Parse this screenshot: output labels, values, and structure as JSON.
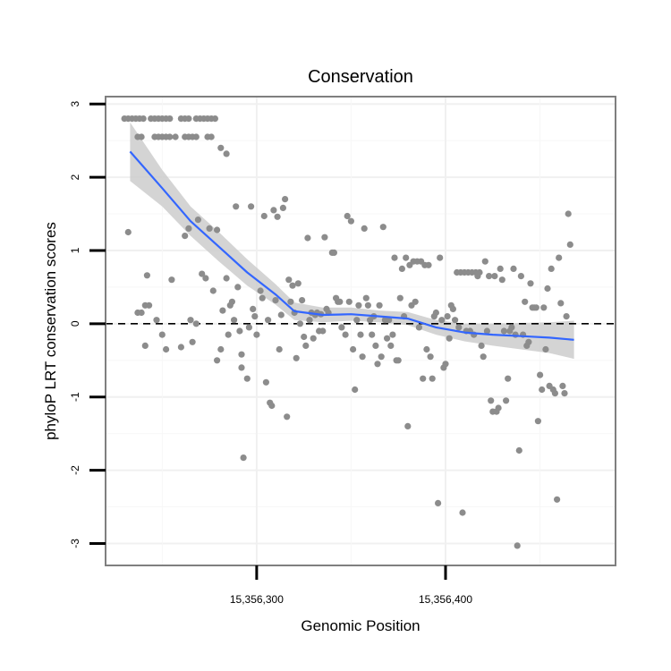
{
  "chart_data": {
    "type": "scatter",
    "title": "Conservation",
    "xlabel": "Genomic Position",
    "ylabel": "phyloP LRT conservation scores",
    "xlim": [
      15356220,
      15356490
    ],
    "ylim": [
      -3.3,
      3.1
    ],
    "x_ticks": [
      15356300,
      15356400
    ],
    "x_tick_labels": [
      "15,356,300",
      "15,356,400"
    ],
    "y_ticks": [
      -3,
      -2,
      -1,
      0,
      1,
      2,
      3
    ],
    "y_tick_labels": [
      "-3",
      "-2",
      "-1",
      "0",
      "1",
      "2",
      "3"
    ],
    "grid": true,
    "reference_line": {
      "y": 0,
      "style": "dashed"
    },
    "colors": {
      "points": "#8c8c8c",
      "smooth": "#3366ff",
      "band": "#cccccc",
      "frame": "#7f7f7f"
    },
    "points": [
      [
        15356230,
        2.8
      ],
      [
        15356232,
        2.8
      ],
      [
        15356234,
        2.8
      ],
      [
        15356236,
        2.8
      ],
      [
        15356238,
        2.8
      ],
      [
        15356240,
        2.8
      ],
      [
        15356244,
        2.8
      ],
      [
        15356246,
        2.8
      ],
      [
        15356248,
        2.8
      ],
      [
        15356250,
        2.8
      ],
      [
        15356252,
        2.8
      ],
      [
        15356254,
        2.8
      ],
      [
        15356260,
        2.8
      ],
      [
        15356262,
        2.8
      ],
      [
        15356264,
        2.8
      ],
      [
        15356268,
        2.8
      ],
      [
        15356270,
        2.8
      ],
      [
        15356272,
        2.8
      ],
      [
        15356274,
        2.8
      ],
      [
        15356276,
        2.8
      ],
      [
        15356278,
        2.8
      ],
      [
        15356237,
        2.55
      ],
      [
        15356239,
        2.55
      ],
      [
        15356246,
        2.55
      ],
      [
        15356248,
        2.55
      ],
      [
        15356250,
        2.55
      ],
      [
        15356252,
        2.55
      ],
      [
        15356254,
        2.55
      ],
      [
        15356257,
        2.55
      ],
      [
        15356262,
        2.55
      ],
      [
        15356264,
        2.55
      ],
      [
        15356266,
        2.55
      ],
      [
        15356268,
        2.55
      ],
      [
        15356274,
        2.55
      ],
      [
        15356276,
        2.55
      ],
      [
        15356281,
        2.4
      ],
      [
        15356284,
        2.32
      ],
      [
        15356232,
        1.25
      ],
      [
        15356242,
        0.66
      ],
      [
        15356237,
        0.15
      ],
      [
        15356239,
        0.15
      ],
      [
        15356241,
        0.25
      ],
      [
        15356243,
        0.25
      ],
      [
        15356241,
        -0.3
      ],
      [
        15356247,
        0.05
      ],
      [
        15356250,
        -0.15
      ],
      [
        15356252,
        -0.35
      ],
      [
        15356255,
        0.6
      ],
      [
        15356260,
        -0.32
      ],
      [
        15356262,
        1.2
      ],
      [
        15356264,
        1.3
      ],
      [
        15356265,
        0.05
      ],
      [
        15356266,
        -0.25
      ],
      [
        15356268,
        0.0
      ],
      [
        15356269,
        1.42
      ],
      [
        15356271,
        0.68
      ],
      [
        15356273,
        0.62
      ],
      [
        15356275,
        1.3
      ],
      [
        15356277,
        0.45
      ],
      [
        15356279,
        1.28
      ],
      [
        15356279,
        -0.5
      ],
      [
        15356281,
        -0.35
      ],
      [
        15356282,
        0.18
      ],
      [
        15356284,
        0.62
      ],
      [
        15356285,
        -0.15
      ],
      [
        15356286,
        0.25
      ],
      [
        15356287,
        0.3
      ],
      [
        15356288,
        0.05
      ],
      [
        15356289,
        1.6
      ],
      [
        15356290,
        0.5
      ],
      [
        15356291,
        -0.1
      ],
      [
        15356292,
        -0.42
      ],
      [
        15356292,
        -0.6
      ],
      [
        15356293,
        -1.83
      ],
      [
        15356295,
        -0.75
      ],
      [
        15356296,
        -0.05
      ],
      [
        15356297,
        1.6
      ],
      [
        15356298,
        0.2
      ],
      [
        15356299,
        0.1
      ],
      [
        15356300,
        -0.15
      ],
      [
        15356302,
        0.45
      ],
      [
        15356303,
        0.35
      ],
      [
        15356304,
        1.47
      ],
      [
        15356305,
        -0.8
      ],
      [
        15356306,
        0.05
      ],
      [
        15356307,
        -1.08
      ],
      [
        15356308,
        -1.12
      ],
      [
        15356309,
        1.55
      ],
      [
        15356310,
        0.32
      ],
      [
        15356311,
        1.46
      ],
      [
        15356312,
        -0.35
      ],
      [
        15356313,
        0.12
      ],
      [
        15356314,
        1.58
      ],
      [
        15356315,
        1.7
      ],
      [
        15356316,
        -1.27
      ],
      [
        15356317,
        0.6
      ],
      [
        15356318,
        0.3
      ],
      [
        15356319,
        0.52
      ],
      [
        15356320,
        0.15
      ],
      [
        15356321,
        -0.47
      ],
      [
        15356322,
        0.55
      ],
      [
        15356323,
        0.0
      ],
      [
        15356324,
        0.32
      ],
      [
        15356325,
        -0.18
      ],
      [
        15356326,
        -0.3
      ],
      [
        15356327,
        1.17
      ],
      [
        15356328,
        0.05
      ],
      [
        15356329,
        0.15
      ],
      [
        15356330,
        -0.2
      ],
      [
        15356331,
        0.12
      ],
      [
        15356332,
        0.15
      ],
      [
        15356333,
        -0.1
      ],
      [
        15356334,
        0.13
      ],
      [
        15356335,
        -0.1
      ],
      [
        15356336,
        1.18
      ],
      [
        15356337,
        0.2
      ],
      [
        15356338,
        0.15
      ],
      [
        15356340,
        0.97
      ],
      [
        15356341,
        0.97
      ],
      [
        15356342,
        0.35
      ],
      [
        15356343,
        0.3
      ],
      [
        15356344,
        0.3
      ],
      [
        15356345,
        -0.05
      ],
      [
        15356347,
        -0.15
      ],
      [
        15356348,
        1.47
      ],
      [
        15356349,
        0.3
      ],
      [
        15356350,
        1.4
      ],
      [
        15356351,
        -0.35
      ],
      [
        15356352,
        -0.9
      ],
      [
        15356353,
        0.05
      ],
      [
        15356354,
        0.25
      ],
      [
        15356355,
        -0.15
      ],
      [
        15356356,
        -0.45
      ],
      [
        15356357,
        1.3
      ],
      [
        15356358,
        0.35
      ],
      [
        15356359,
        0.25
      ],
      [
        15356360,
        0.05
      ],
      [
        15356361,
        -0.15
      ],
      [
        15356362,
        0.1
      ],
      [
        15356363,
        -0.3
      ],
      [
        15356364,
        -0.55
      ],
      [
        15356365,
        0.25
      ],
      [
        15356366,
        -0.45
      ],
      [
        15356367,
        1.32
      ],
      [
        15356368,
        0.05
      ],
      [
        15356369,
        -0.2
      ],
      [
        15356370,
        0.05
      ],
      [
        15356371,
        -0.3
      ],
      [
        15356372,
        -0.15
      ],
      [
        15356373,
        0.9
      ],
      [
        15356374,
        -0.5
      ],
      [
        15356375,
        -0.5
      ],
      [
        15356376,
        0.35
      ],
      [
        15356377,
        0.75
      ],
      [
        15356378,
        0.1
      ],
      [
        15356379,
        0.9
      ],
      [
        15356380,
        -1.4
      ],
      [
        15356381,
        0.8
      ],
      [
        15356382,
        0.25
      ],
      [
        15356383,
        0.85
      ],
      [
        15356384,
        0.3
      ],
      [
        15356385,
        0.85
      ],
      [
        15356386,
        -0.05
      ],
      [
        15356387,
        0.85
      ],
      [
        15356388,
        -0.75
      ],
      [
        15356389,
        0.8
      ],
      [
        15356390,
        -0.35
      ],
      [
        15356391,
        0.8
      ],
      [
        15356392,
        -0.45
      ],
      [
        15356393,
        -0.75
      ],
      [
        15356394,
        0.1
      ],
      [
        15356395,
        0.15
      ],
      [
        15356396,
        -2.45
      ],
      [
        15356397,
        0.9
      ],
      [
        15356398,
        0.05
      ],
      [
        15356399,
        -0.6
      ],
      [
        15356400,
        -0.55
      ],
      [
        15356401,
        0.1
      ],
      [
        15356402,
        -0.2
      ],
      [
        15356403,
        0.25
      ],
      [
        15356404,
        0.2
      ],
      [
        15356405,
        0.05
      ],
      [
        15356406,
        0.7
      ],
      [
        15356407,
        -0.05
      ],
      [
        15356408,
        0.7
      ],
      [
        15356409,
        -2.58
      ],
      [
        15356410,
        0.7
      ],
      [
        15356411,
        -0.1
      ],
      [
        15356412,
        0.7
      ],
      [
        15356413,
        -0.1
      ],
      [
        15356414,
        0.7
      ],
      [
        15356415,
        -0.15
      ],
      [
        15356416,
        0.7
      ],
      [
        15356417,
        0.65
      ],
      [
        15356418,
        0.7
      ],
      [
        15356419,
        -0.3
      ],
      [
        15356420,
        -0.45
      ],
      [
        15356421,
        0.85
      ],
      [
        15356422,
        -0.1
      ],
      [
        15356423,
        0.65
      ],
      [
        15356424,
        -1.05
      ],
      [
        15356425,
        -1.2
      ],
      [
        15356426,
        0.65
      ],
      [
        15356427,
        -1.2
      ],
      [
        15356428,
        -1.15
      ],
      [
        15356429,
        0.75
      ],
      [
        15356430,
        0.6
      ],
      [
        15356431,
        -0.1
      ],
      [
        15356432,
        -1.05
      ],
      [
        15356433,
        -0.75
      ],
      [
        15356434,
        -0.1
      ],
      [
        15356435,
        -0.05
      ],
      [
        15356436,
        0.75
      ],
      [
        15356437,
        -0.15
      ],
      [
        15356438,
        -3.03
      ],
      [
        15356439,
        -1.73
      ],
      [
        15356440,
        0.65
      ],
      [
        15356441,
        -0.15
      ],
      [
        15356442,
        0.3
      ],
      [
        15356443,
        -0.3
      ],
      [
        15356444,
        -0.25
      ],
      [
        15356445,
        0.55
      ],
      [
        15356446,
        0.22
      ],
      [
        15356447,
        0.22
      ],
      [
        15356448,
        0.22
      ],
      [
        15356449,
        -1.33
      ],
      [
        15356450,
        -0.7
      ],
      [
        15356451,
        -0.9
      ],
      [
        15356452,
        0.22
      ],
      [
        15356453,
        -0.35
      ],
      [
        15356454,
        0.48
      ],
      [
        15356455,
        -0.85
      ],
      [
        15356456,
        0.75
      ],
      [
        15356457,
        -0.9
      ],
      [
        15356458,
        -0.95
      ],
      [
        15356459,
        -2.4
      ],
      [
        15356460,
        0.9
      ],
      [
        15356461,
        0.28
      ],
      [
        15356462,
        -0.85
      ],
      [
        15356463,
        -0.95
      ],
      [
        15356464,
        0.1
      ],
      [
        15356465,
        1.5
      ],
      [
        15356466,
        1.08
      ]
    ],
    "smooth": {
      "x": [
        15356233,
        15356250,
        15356265,
        15356280,
        15356295,
        15356310,
        15356320,
        15356335,
        15356350,
        15356365,
        15356380,
        15356395,
        15356410,
        15356425,
        15356440,
        15356455,
        15356468
      ],
      "y": [
        2.35,
        1.85,
        1.4,
        1.05,
        0.7,
        0.4,
        0.17,
        0.12,
        0.13,
        0.1,
        0.07,
        -0.05,
        -0.12,
        -0.15,
        -0.17,
        -0.19,
        -0.22
      ],
      "lower": [
        1.95,
        1.6,
        1.2,
        0.85,
        0.52,
        0.26,
        0.05,
        0.02,
        0.04,
        0.02,
        -0.02,
        -0.15,
        -0.24,
        -0.3,
        -0.35,
        -0.4,
        -0.48
      ],
      "upper": [
        2.75,
        2.1,
        1.6,
        1.25,
        0.88,
        0.54,
        0.29,
        0.22,
        0.22,
        0.18,
        0.16,
        0.05,
        0.0,
        0.0,
        0.01,
        0.02,
        0.04
      ]
    }
  }
}
